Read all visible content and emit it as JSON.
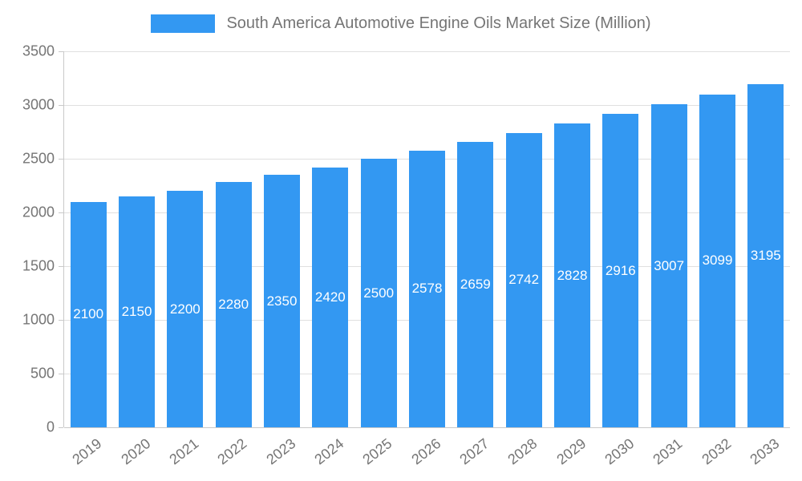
{
  "legend": {
    "label": "South America Automotive Engine Oils Market Size (Million)"
  },
  "chart_data": {
    "type": "bar",
    "title": "South America Automotive Engine Oils Market Size (Million)",
    "categories": [
      "2019",
      "2020",
      "2021",
      "2022",
      "2023",
      "2024",
      "2025",
      "2026",
      "2027",
      "2028",
      "2029",
      "2030",
      "2031",
      "2032",
      "2033"
    ],
    "values": [
      2100,
      2150,
      2200,
      2280,
      2350,
      2420,
      2500,
      2578,
      2659,
      2742,
      2828,
      2916,
      3007,
      3099,
      3195
    ],
    "xlabel": "",
    "ylabel": "",
    "ylim": [
      0,
      3500
    ],
    "yticks": [
      0,
      500,
      1000,
      1500,
      2000,
      2500,
      3000,
      3500
    ],
    "grid": true,
    "legend_position": "top",
    "bar_color": "#3398f2",
    "bar_label_color": "#ffffff",
    "text_color": "#757575",
    "grid_color": "#e0e0e0",
    "axis_color": "#c9c9c9"
  }
}
